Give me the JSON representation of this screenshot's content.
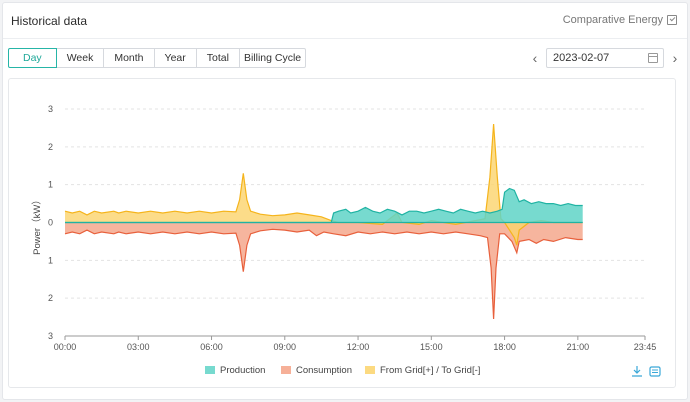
{
  "header": {
    "title": "Historical data",
    "comparative_label": "Comparative Energy"
  },
  "tabs": [
    {
      "label": "Day",
      "active": true
    },
    {
      "label": "Week",
      "active": false
    },
    {
      "label": "Month",
      "active": false
    },
    {
      "label": "Year",
      "active": false
    },
    {
      "label": "Total",
      "active": false
    },
    {
      "label": "Billing Cycle",
      "active": false
    }
  ],
  "date_nav": {
    "prev_icon": "chevron-left-icon",
    "next_icon": "chevron-right-icon",
    "value": "2023-02-07",
    "calendar_icon": "calendar-icon"
  },
  "toolbar": {
    "download_icon": "download-icon",
    "view_icon": "data-view-icon"
  },
  "colors": {
    "accent": "#26b5a7",
    "production": "#5fd3c7",
    "production_line": "#1fb3a3",
    "consumption": "#f4a286",
    "consumption_line": "#e8603c",
    "grid": "#fbd36b",
    "grid_line": "#f5b41b"
  },
  "chart_data": {
    "type": "area",
    "ylabel": "Power（kW）",
    "yticks": [
      "3",
      "2",
      "1",
      "0",
      "1",
      "2",
      "3"
    ],
    "ylim": [
      -3,
      3
    ],
    "xticks": [
      "00:00",
      "03:00",
      "06:00",
      "09:00",
      "12:00",
      "15:00",
      "18:00",
      "21:00",
      "23:45"
    ],
    "xlim_hours": [
      0,
      23.75
    ],
    "legend": [
      "Production",
      "Consumption",
      "From Grid[+] / To Grid[-]"
    ],
    "legend_position": "bottom",
    "grid": true,
    "series": [
      {
        "name": "Production",
        "points": [
          [
            0,
            0
          ],
          [
            10.9,
            0
          ],
          [
            11.0,
            0.25
          ],
          [
            11.2,
            0.3
          ],
          [
            11.5,
            0.35
          ],
          [
            11.7,
            0.25
          ],
          [
            12.0,
            0.3
          ],
          [
            12.3,
            0.4
          ],
          [
            12.6,
            0.3
          ],
          [
            12.9,
            0.25
          ],
          [
            13.2,
            0.35
          ],
          [
            13.5,
            0.3
          ],
          [
            13.8,
            0.2
          ],
          [
            14.1,
            0.3
          ],
          [
            14.4,
            0.3
          ],
          [
            14.7,
            0.25
          ],
          [
            15.0,
            0.3
          ],
          [
            15.3,
            0.35
          ],
          [
            15.6,
            0.3
          ],
          [
            15.9,
            0.25
          ],
          [
            16.2,
            0.35
          ],
          [
            16.5,
            0.3
          ],
          [
            16.8,
            0.25
          ],
          [
            17.1,
            0.3
          ],
          [
            17.4,
            0.25
          ],
          [
            17.7,
            0.3
          ],
          [
            17.9,
            0.35
          ],
          [
            18.0,
            0.8
          ],
          [
            18.2,
            0.9
          ],
          [
            18.4,
            0.85
          ],
          [
            18.6,
            0.55
          ],
          [
            18.8,
            0.6
          ],
          [
            19.1,
            0.5
          ],
          [
            19.4,
            0.55
          ],
          [
            19.7,
            0.5
          ],
          [
            20.0,
            0.5
          ],
          [
            20.3,
            0.45
          ],
          [
            20.6,
            0.5
          ],
          [
            20.9,
            0.45
          ],
          [
            21.2,
            0.45
          ]
        ]
      },
      {
        "name": "Consumption",
        "points": [
          [
            0,
            -0.3
          ],
          [
            0.3,
            -0.25
          ],
          [
            0.6,
            -0.3
          ],
          [
            0.9,
            -0.2
          ],
          [
            1.2,
            -0.3
          ],
          [
            1.5,
            -0.25
          ],
          [
            2.0,
            -0.3
          ],
          [
            2.2,
            -0.25
          ],
          [
            2.5,
            -0.3
          ],
          [
            3.0,
            -0.25
          ],
          [
            3.5,
            -0.3
          ],
          [
            4.0,
            -0.25
          ],
          [
            4.5,
            -0.3
          ],
          [
            5.0,
            -0.25
          ],
          [
            5.5,
            -0.3
          ],
          [
            6.0,
            -0.25
          ],
          [
            6.5,
            -0.3
          ],
          [
            7.0,
            -0.28
          ],
          [
            7.15,
            -0.6
          ],
          [
            7.3,
            -1.3
          ],
          [
            7.45,
            -0.6
          ],
          [
            7.6,
            -0.3
          ],
          [
            8.0,
            -0.22
          ],
          [
            8.5,
            -0.18
          ],
          [
            9.0,
            -0.2
          ],
          [
            9.5,
            -0.25
          ],
          [
            10.0,
            -0.2
          ],
          [
            10.3,
            -0.35
          ],
          [
            10.6,
            -0.25
          ],
          [
            11.0,
            -0.3
          ],
          [
            11.5,
            -0.35
          ],
          [
            12.0,
            -0.25
          ],
          [
            12.5,
            -0.3
          ],
          [
            13.0,
            -0.25
          ],
          [
            13.5,
            -0.3
          ],
          [
            14.0,
            -0.25
          ],
          [
            14.5,
            -0.3
          ],
          [
            15.0,
            -0.25
          ],
          [
            15.5,
            -0.3
          ],
          [
            16.0,
            -0.25
          ],
          [
            16.5,
            -0.3
          ],
          [
            17.0,
            -0.35
          ],
          [
            17.3,
            -0.4
          ],
          [
            17.45,
            -1.2
          ],
          [
            17.55,
            -2.55
          ],
          [
            17.65,
            -1.2
          ],
          [
            17.8,
            -0.3
          ],
          [
            18.0,
            -0.3
          ],
          [
            18.3,
            -0.5
          ],
          [
            18.5,
            -0.8
          ],
          [
            18.6,
            -0.5
          ],
          [
            19.0,
            -0.45
          ],
          [
            19.3,
            -0.55
          ],
          [
            19.6,
            -0.45
          ],
          [
            20.0,
            -0.5
          ],
          [
            20.5,
            -0.4
          ],
          [
            21.0,
            -0.45
          ],
          [
            21.2,
            -0.45
          ]
        ]
      },
      {
        "name": "From Grid[+] / To Grid[-]",
        "points": [
          [
            0,
            0.3
          ],
          [
            0.3,
            0.25
          ],
          [
            0.6,
            0.3
          ],
          [
            0.9,
            0.2
          ],
          [
            1.2,
            0.3
          ],
          [
            1.5,
            0.25
          ],
          [
            2.0,
            0.3
          ],
          [
            2.2,
            0.25
          ],
          [
            2.5,
            0.3
          ],
          [
            3.0,
            0.25
          ],
          [
            3.5,
            0.3
          ],
          [
            4.0,
            0.25
          ],
          [
            4.5,
            0.3
          ],
          [
            5.0,
            0.25
          ],
          [
            5.5,
            0.3
          ],
          [
            6.0,
            0.25
          ],
          [
            6.5,
            0.3
          ],
          [
            7.0,
            0.28
          ],
          [
            7.15,
            0.6
          ],
          [
            7.3,
            1.3
          ],
          [
            7.45,
            0.6
          ],
          [
            7.6,
            0.3
          ],
          [
            8.0,
            0.22
          ],
          [
            8.5,
            0.18
          ],
          [
            9.0,
            0.2
          ],
          [
            9.5,
            0.25
          ],
          [
            10.0,
            0.2
          ],
          [
            10.5,
            0.15
          ],
          [
            10.9,
            0.05
          ],
          [
            11.2,
            0.0
          ],
          [
            12.0,
            0.0
          ],
          [
            13.0,
            -0.05
          ],
          [
            13.6,
            0.25
          ],
          [
            13.8,
            0.0
          ],
          [
            14.5,
            -0.05
          ],
          [
            15.0,
            0.05
          ],
          [
            16.0,
            -0.05
          ],
          [
            16.8,
            0.05
          ],
          [
            17.2,
            0.1
          ],
          [
            17.4,
            1.2
          ],
          [
            17.55,
            2.6
          ],
          [
            17.7,
            1.2
          ],
          [
            17.85,
            0.1
          ],
          [
            18.0,
            0.0
          ],
          [
            18.4,
            -0.4
          ],
          [
            18.5,
            -0.6
          ],
          [
            18.6,
            -0.2
          ],
          [
            19.0,
            0.0
          ],
          [
            19.5,
            0.05
          ],
          [
            20.0,
            0.0
          ],
          [
            21.2,
            0.0
          ]
        ]
      }
    ]
  }
}
